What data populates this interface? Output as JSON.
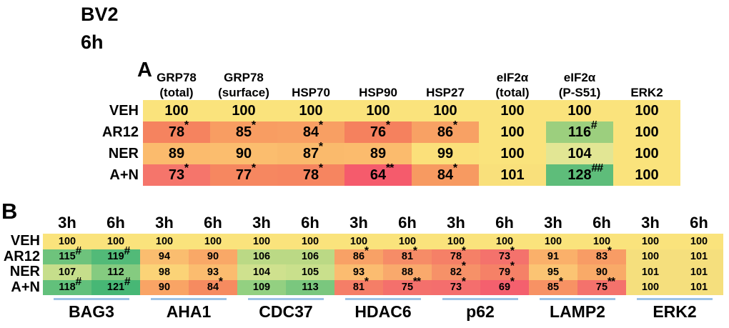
{
  "title": {
    "line1": "BV2",
    "line2": "6h"
  },
  "panels": {
    "a_label": "A",
    "b_label": "B"
  },
  "style": {
    "underline_color": "#9DC3E6",
    "background": "#FFFFFF",
    "text_color": "#000000"
  },
  "chart_data": [
    {
      "type": "heatmap",
      "panel": "A",
      "title": "BV2 6h",
      "value_meaning": "percent of VEH control",
      "columns": [
        [
          "GRP78",
          "(total)"
        ],
        [
          "GRP78",
          "(surface)"
        ],
        [
          "HSP70"
        ],
        [
          "HSP90"
        ],
        [
          "HSP27"
        ],
        [
          "eIF2α",
          "(total)"
        ],
        [
          "eIF2α",
          "(P-S51)"
        ],
        [
          "ERK2"
        ]
      ],
      "row_labels": [
        "VEH",
        "AR12",
        "NER",
        "A+N"
      ],
      "rows": [
        [
          {
            "v": "100",
            "m": "",
            "c": "#FAE37C"
          },
          {
            "v": "100",
            "m": "",
            "c": "#FAE37C"
          },
          {
            "v": "100",
            "m": "",
            "c": "#FAE37C"
          },
          {
            "v": "100",
            "m": "",
            "c": "#FAE37C"
          },
          {
            "v": "100",
            "m": "",
            "c": "#FAE37C"
          },
          {
            "v": "100",
            "m": "",
            "c": "#FAE37C"
          },
          {
            "v": "100",
            "m": "",
            "c": "#FAE37C"
          },
          {
            "v": "100",
            "m": "",
            "c": "#FAE37C"
          }
        ],
        [
          {
            "v": "78",
            "m": "*",
            "c": "#F5835F"
          },
          {
            "v": "85",
            "m": "*",
            "c": "#F89D62"
          },
          {
            "v": "84",
            "m": "*",
            "c": "#F89F63"
          },
          {
            "v": "76",
            "m": "*",
            "c": "#F5815E"
          },
          {
            "v": "86",
            "m": "*",
            "c": "#F8A164"
          },
          {
            "v": "100",
            "m": "",
            "c": "#FAE37C"
          },
          {
            "v": "116",
            "m": "#",
            "c": "#9CCF7E"
          },
          {
            "v": "100",
            "m": "",
            "c": "#FAE37C"
          }
        ],
        [
          {
            "v": "89",
            "m": "",
            "c": "#FBBB6D"
          },
          {
            "v": "90",
            "m": "",
            "c": "#FBBD6E"
          },
          {
            "v": "87",
            "m": "*",
            "c": "#FABA6C"
          },
          {
            "v": "89",
            "m": "",
            "c": "#FBBB6D"
          },
          {
            "v": "99",
            "m": "",
            "c": "#FBE07A"
          },
          {
            "v": "100",
            "m": "",
            "c": "#FAE37C"
          },
          {
            "v": "104",
            "m": "",
            "c": "#E2E694"
          },
          {
            "v": "100",
            "m": "",
            "c": "#FAE37C"
          }
        ],
        [
          {
            "v": "73",
            "m": "*",
            "c": "#F5756B"
          },
          {
            "v": "77",
            "m": "*",
            "c": "#F68760"
          },
          {
            "v": "78",
            "m": "*",
            "c": "#F68560"
          },
          {
            "v": "64",
            "m": "**",
            "c": "#F55B6C"
          },
          {
            "v": "84",
            "m": "*",
            "c": "#F79A61"
          },
          {
            "v": "101",
            "m": "",
            "c": "#F9E07B"
          },
          {
            "v": "128",
            "m": "##",
            "c": "#5EBD7A"
          },
          {
            "v": "100",
            "m": "",
            "c": "#FAE37C"
          }
        ]
      ]
    },
    {
      "type": "heatmap",
      "panel": "B",
      "value_meaning": "percent of VEH control at 3h and 6h",
      "time_headers": [
        "3h",
        "6h",
        "3h",
        "6h",
        "3h",
        "6h",
        "3h",
        "6h",
        "3h",
        "6h",
        "3h",
        "6h",
        "3h",
        "6h"
      ],
      "groups": [
        "BAG3",
        "AHA1",
        "CDC37",
        "HDAC6",
        "p62",
        "LAMP2",
        "ERK2"
      ],
      "row_labels": [
        "VEH",
        "AR12",
        "NER",
        "A+N"
      ],
      "rows": [
        [
          {
            "v": "100",
            "m": "",
            "c": "#FAE37C"
          },
          {
            "v": "100",
            "m": "",
            "c": "#FAE37C"
          },
          {
            "v": "100",
            "m": "",
            "c": "#FAE37C"
          },
          {
            "v": "100",
            "m": "",
            "c": "#FAE37C"
          },
          {
            "v": "100",
            "m": "",
            "c": "#FAE37C"
          },
          {
            "v": "100",
            "m": "",
            "c": "#FAE37C"
          },
          {
            "v": "100",
            "m": "",
            "c": "#FAE37C"
          },
          {
            "v": "100",
            "m": "",
            "c": "#FAE37C"
          },
          {
            "v": "100",
            "m": "",
            "c": "#FAE37C"
          },
          {
            "v": "100",
            "m": "",
            "c": "#FAE37C"
          },
          {
            "v": "100",
            "m": "",
            "c": "#FAE37C"
          },
          {
            "v": "100",
            "m": "",
            "c": "#FAE37C"
          },
          {
            "v": "100",
            "m": "",
            "c": "#FAE37C"
          },
          {
            "v": "100",
            "m": "",
            "c": "#FAE37C"
          }
        ],
        [
          {
            "v": "115",
            "m": "#",
            "c": "#6EC37C"
          },
          {
            "v": "119",
            "m": "#",
            "c": "#52BA78"
          },
          {
            "v": "94",
            "m": "",
            "c": "#FABD6F"
          },
          {
            "v": "90",
            "m": "",
            "c": "#F9A867"
          },
          {
            "v": "106",
            "m": "",
            "c": "#BBD985"
          },
          {
            "v": "106",
            "m": "",
            "c": "#BBD985"
          },
          {
            "v": "86",
            "m": "*",
            "c": "#F8A166"
          },
          {
            "v": "81",
            "m": "*",
            "c": "#F68C67"
          },
          {
            "v": "78",
            "m": "*",
            "c": "#F58067"
          },
          {
            "v": "73",
            "m": "*",
            "c": "#F4726C"
          },
          {
            "v": "91",
            "m": "",
            "c": "#FAB06A"
          },
          {
            "v": "83",
            "m": "*",
            "c": "#F89C65"
          },
          {
            "v": "100",
            "m": "",
            "c": "#F5DF7D"
          },
          {
            "v": "101",
            "m": "",
            "c": "#F5DF7D"
          }
        ],
        [
          {
            "v": "107",
            "m": "",
            "c": "#C6DE8B"
          },
          {
            "v": "112",
            "m": "",
            "c": "#85CB80"
          },
          {
            "v": "98",
            "m": "",
            "c": "#FBD377"
          },
          {
            "v": "93",
            "m": "",
            "c": "#FBBC6F"
          },
          {
            "v": "104",
            "m": "",
            "c": "#CFE18E"
          },
          {
            "v": "105",
            "m": "",
            "c": "#C9E08C"
          },
          {
            "v": "93",
            "m": "",
            "c": "#FBBC70"
          },
          {
            "v": "88",
            "m": "",
            "c": "#F9A96C"
          },
          {
            "v": "82",
            "m": "*",
            "c": "#F69168"
          },
          {
            "v": "79",
            "m": "*",
            "c": "#F58167"
          },
          {
            "v": "95",
            "m": "",
            "c": "#FBC473"
          },
          {
            "v": "90",
            "m": "",
            "c": "#F9AA68"
          },
          {
            "v": "101",
            "m": "",
            "c": "#F5DF7D"
          },
          {
            "v": "101",
            "m": "",
            "c": "#F5DF7D"
          }
        ],
        [
          {
            "v": "118",
            "m": "#",
            "c": "#62C07B"
          },
          {
            "v": "121",
            "m": "#",
            "c": "#47B775"
          },
          {
            "v": "90",
            "m": "",
            "c": "#F9A465"
          },
          {
            "v": "84",
            "m": "*",
            "c": "#F68B60"
          },
          {
            "v": "109",
            "m": "",
            "c": "#93D081"
          },
          {
            "v": "113",
            "m": "",
            "c": "#7AC77E"
          },
          {
            "v": "81",
            "m": "*",
            "c": "#F57E67"
          },
          {
            "v": "75",
            "m": "**",
            "c": "#F4706C"
          },
          {
            "v": "73",
            "m": "*",
            "c": "#F46E6D"
          },
          {
            "v": "69",
            "m": "*",
            "c": "#F4606E"
          },
          {
            "v": "85",
            "m": "*",
            "c": "#F79264"
          },
          {
            "v": "75",
            "m": "**",
            "c": "#F4726C"
          },
          {
            "v": "100",
            "m": "",
            "c": "#F5DF7D"
          },
          {
            "v": "101",
            "m": "",
            "c": "#F5DF7D"
          }
        ]
      ]
    }
  ]
}
